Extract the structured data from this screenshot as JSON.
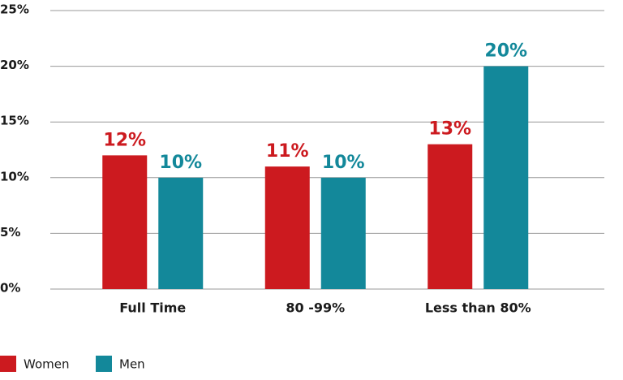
{
  "chart_data": {
    "type": "bar",
    "categories": [
      "Full Time",
      "80 -99%",
      "Less than 80%"
    ],
    "series": [
      {
        "name": "Women",
        "color": "#cc1a1f",
        "values": [
          12,
          11,
          13
        ],
        "value_labels": [
          "12%",
          "11%",
          "13%"
        ]
      },
      {
        "name": "Men",
        "color": "#13889a",
        "values": [
          10,
          10,
          20
        ],
        "value_labels": [
          "10%",
          "10%",
          "20%"
        ]
      }
    ],
    "ylim": [
      0,
      25
    ],
    "yticks": [
      {
        "value": 0,
        "label": "0%"
      },
      {
        "value": 5,
        "label": "5%"
      },
      {
        "value": 10,
        "label": "10%"
      },
      {
        "value": 15,
        "label": "15%"
      },
      {
        "value": 20,
        "label": "20%"
      },
      {
        "value": 25,
        "label": "25%"
      }
    ],
    "grid": true
  }
}
